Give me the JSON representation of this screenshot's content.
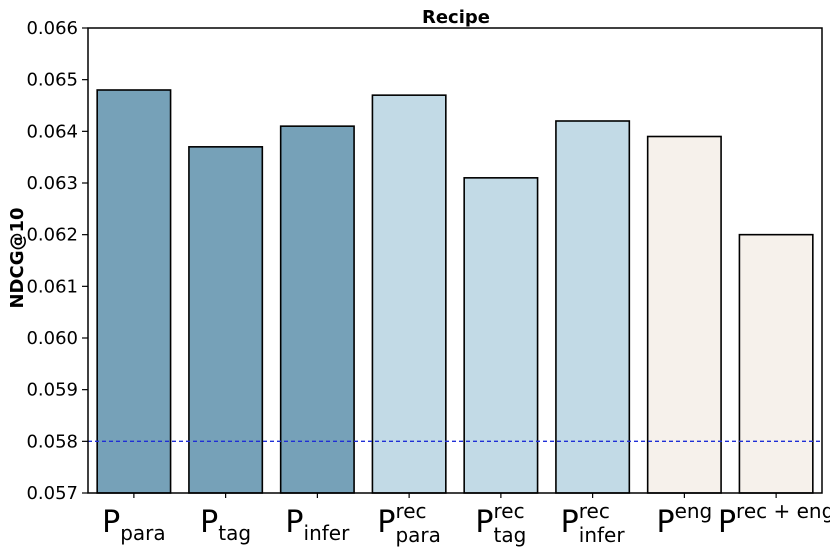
{
  "chart_data": {
    "type": "bar",
    "title": "Recipe",
    "xlabel": "",
    "ylabel": "NDCG@10",
    "ylim": [
      0.057,
      0.066
    ],
    "yticks": [
      "0.057",
      "0.058",
      "0.059",
      "0.060",
      "0.061",
      "0.062",
      "0.063",
      "0.064",
      "0.065",
      "0.066"
    ],
    "categories": [
      {
        "base": "P",
        "sub": "para",
        "sup": ""
      },
      {
        "base": "P",
        "sub": "tag",
        "sup": ""
      },
      {
        "base": "P",
        "sub": "infer",
        "sup": ""
      },
      {
        "base": "P",
        "sub": "para",
        "sup": "rec"
      },
      {
        "base": "P",
        "sub": "tag",
        "sup": "rec"
      },
      {
        "base": "P",
        "sub": "infer",
        "sup": "rec"
      },
      {
        "base": "P",
        "sub": "",
        "sup": "eng"
      },
      {
        "base": "P",
        "sub": "",
        "sup": "rec + eng"
      }
    ],
    "values": [
      0.0648,
      0.0637,
      0.0641,
      0.0647,
      0.0631,
      0.0642,
      0.0639,
      0.062
    ],
    "bar_colors": [
      "#76a1b8",
      "#76a1b8",
      "#76a1b8",
      "#c2dae6",
      "#c2dae6",
      "#c2dae6",
      "#f6f1eb",
      "#f6f1eb"
    ],
    "reference_line": {
      "value": 0.058,
      "color": "#1f2fd6",
      "style": "dashed"
    },
    "grid": false
  }
}
